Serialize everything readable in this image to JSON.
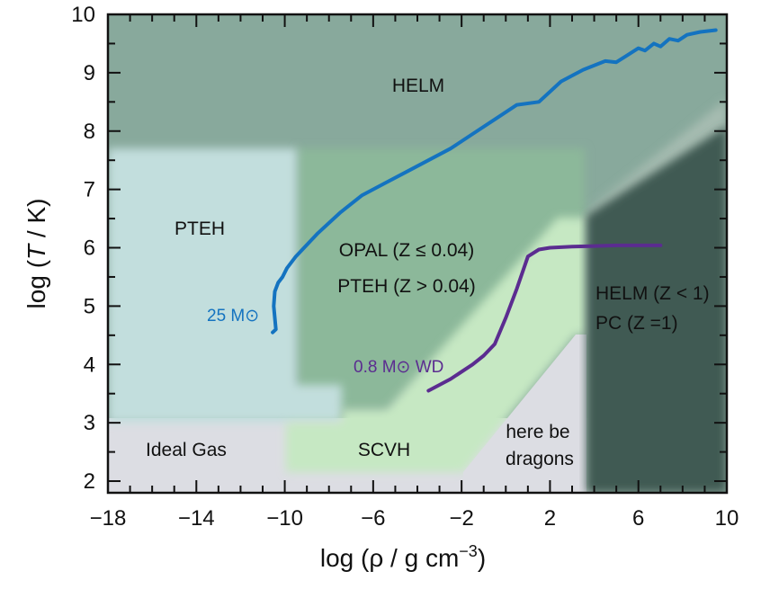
{
  "chart_data": {
    "type": "line",
    "title": "",
    "xlabel_main": "log (ρ / g cm",
    "xlabel_exp": "−3",
    "xlabel_close": ")",
    "ylabel_prefix": "log (",
    "ylabel_italic": "T",
    "ylabel_suffix": " / K)",
    "xlim": [
      -18,
      10
    ],
    "ylim": [
      1.8,
      10
    ],
    "x_ticks": [
      -18,
      -14,
      -10,
      -6,
      -2,
      2,
      6,
      10
    ],
    "x_tick_labels": [
      "−18",
      "−14",
      "−10",
      "−6",
      "−2",
      "2",
      "6",
      "10"
    ],
    "y_ticks": [
      2,
      3,
      4,
      5,
      6,
      7,
      8,
      9,
      10
    ],
    "y_tick_labels": [
      "2",
      "3",
      "4",
      "5",
      "6",
      "7",
      "8",
      "9",
      "10"
    ],
    "regions": [
      {
        "id": "ideal-gas",
        "label": "Ideal Gas",
        "color": "#dcdde3"
      },
      {
        "id": "scvh",
        "label": "SCVH",
        "color": "#c6e8c3"
      },
      {
        "id": "opal",
        "label": "OPAL (Z ≤ 0.04)",
        "label2": "PTEH (Z > 0.04)",
        "color": "#8cb89a"
      },
      {
        "id": "pteh",
        "label": "PTEH",
        "color": "#c2dedd"
      },
      {
        "id": "helm",
        "label": "HELM",
        "color": "#89a89b"
      },
      {
        "id": "helm-pc",
        "label": "HELM (Z < 1)",
        "label2": "PC (Z =1)",
        "color": "#3f5a52"
      },
      {
        "id": "dragons",
        "label": "here be",
        "label2": "dragons",
        "color": "#dcdde3"
      }
    ],
    "series": [
      {
        "name": "25 M⊙",
        "color": "#1473c0",
        "points": [
          [
            -10.55,
            4.55
          ],
          [
            -10.4,
            4.6
          ],
          [
            -10.45,
            4.8
          ],
          [
            -10.5,
            5.0
          ],
          [
            -10.45,
            5.25
          ],
          [
            -10.3,
            5.4
          ],
          [
            -10.1,
            5.5
          ],
          [
            -9.9,
            5.65
          ],
          [
            -9.5,
            5.85
          ],
          [
            -8.5,
            6.25
          ],
          [
            -7.5,
            6.6
          ],
          [
            -6.5,
            6.9
          ],
          [
            -5.5,
            7.1
          ],
          [
            -4.5,
            7.3
          ],
          [
            -3.5,
            7.5
          ],
          [
            -2.5,
            7.7
          ],
          [
            -1.5,
            7.95
          ],
          [
            -0.5,
            8.2
          ],
          [
            0.5,
            8.45
          ],
          [
            1.5,
            8.5
          ],
          [
            2.5,
            8.85
          ],
          [
            3.5,
            9.05
          ],
          [
            4.5,
            9.2
          ],
          [
            5.0,
            9.18
          ],
          [
            5.5,
            9.3
          ],
          [
            6.0,
            9.42
          ],
          [
            6.3,
            9.38
          ],
          [
            6.7,
            9.5
          ],
          [
            7.0,
            9.45
          ],
          [
            7.4,
            9.58
          ],
          [
            7.8,
            9.55
          ],
          [
            8.2,
            9.65
          ],
          [
            8.8,
            9.7
          ],
          [
            9.5,
            9.73
          ]
        ]
      },
      {
        "name": "0.8 M⊙ WD",
        "color": "#5b2c90",
        "points": [
          [
            -3.5,
            3.55
          ],
          [
            -2.5,
            3.75
          ],
          [
            -1.5,
            4.0
          ],
          [
            -1.0,
            4.15
          ],
          [
            -0.5,
            4.35
          ],
          [
            0.0,
            4.8
          ],
          [
            0.5,
            5.3
          ],
          [
            1.0,
            5.85
          ],
          [
            1.5,
            5.97
          ],
          [
            2.0,
            6.0
          ],
          [
            3.0,
            6.02
          ],
          [
            4.0,
            6.03
          ],
          [
            5.0,
            6.04
          ],
          [
            7.0,
            6.04
          ]
        ]
      }
    ]
  }
}
